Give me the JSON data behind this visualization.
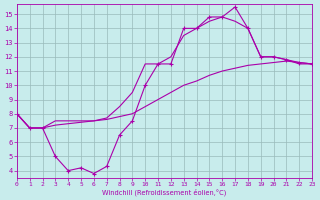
{
  "xlabel": "Windchill (Refroidissement éolien,°C)",
  "xlim": [
    0,
    23
  ],
  "ylim": [
    3.5,
    15.7
  ],
  "ytick_vals": [
    4,
    5,
    6,
    7,
    8,
    9,
    10,
    11,
    12,
    13,
    14,
    15
  ],
  "xtick_vals": [
    0,
    1,
    2,
    3,
    4,
    5,
    6,
    7,
    8,
    9,
    10,
    11,
    12,
    13,
    14,
    15,
    16,
    17,
    18,
    19,
    20,
    21,
    22,
    23
  ],
  "bg_color": "#c8ecec",
  "line_color": "#aa00aa",
  "grid_color": "#99bbbb",
  "line1_x": [
    0,
    1,
    2,
    3,
    4,
    5,
    6,
    7,
    8,
    9,
    10,
    11,
    12,
    13,
    14,
    15,
    16,
    17,
    18,
    19,
    20,
    21,
    22,
    23
  ],
  "line1_y": [
    8.0,
    7.0,
    7.0,
    7.2,
    7.3,
    7.4,
    7.5,
    7.6,
    7.8,
    8.0,
    8.5,
    9.0,
    9.5,
    10.0,
    10.3,
    10.7,
    11.0,
    11.2,
    11.4,
    11.5,
    11.6,
    11.7,
    11.6,
    11.5
  ],
  "line2_x": [
    0,
    1,
    2,
    3,
    4,
    5,
    6,
    7,
    8,
    9,
    10,
    11,
    12,
    13,
    14,
    15,
    16,
    17,
    18,
    19,
    20,
    21,
    22,
    23
  ],
  "line2_y": [
    8.0,
    7.0,
    7.0,
    5.0,
    4.0,
    4.2,
    3.8,
    4.3,
    6.5,
    7.5,
    10.0,
    11.5,
    11.5,
    14.0,
    14.0,
    14.8,
    14.8,
    15.5,
    14.0,
    12.0,
    12.0,
    11.8,
    11.6,
    11.5
  ],
  "line3_x": [
    0,
    1,
    2,
    3,
    4,
    5,
    6,
    7,
    8,
    9,
    10,
    11,
    12,
    13,
    14,
    15,
    16,
    17,
    18,
    19,
    20,
    21,
    22,
    23
  ],
  "line3_y": [
    8.0,
    7.0,
    7.0,
    7.5,
    7.5,
    7.5,
    7.5,
    7.7,
    8.5,
    9.5,
    11.5,
    11.5,
    12.0,
    13.5,
    14.0,
    14.5,
    14.8,
    14.5,
    14.0,
    12.0,
    12.0,
    11.8,
    11.5,
    11.5
  ]
}
